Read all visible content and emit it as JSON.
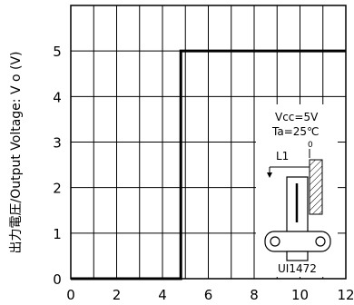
{
  "chart_data": {
    "type": "line",
    "ylabel": "出力電圧/Output Voltage: V o (V)",
    "xlim": [
      0,
      12
    ],
    "ylim": [
      0,
      6
    ],
    "x_ticks": [
      "0",
      "2",
      "4",
      "6",
      "8",
      "10",
      "12"
    ],
    "y_ticks": [
      "0",
      "1",
      "2",
      "3",
      "4",
      "5"
    ],
    "grid": true,
    "series": [
      {
        "x": [
          0,
          4.8,
          4.8,
          12
        ],
        "y": [
          0,
          0,
          5,
          5
        ]
      }
    ]
  },
  "annotation": {
    "vcc": "Vcc=5V",
    "ta": "Ta=25℃",
    "l1": "L1",
    "zero": "0",
    "part": "UI1472"
  }
}
